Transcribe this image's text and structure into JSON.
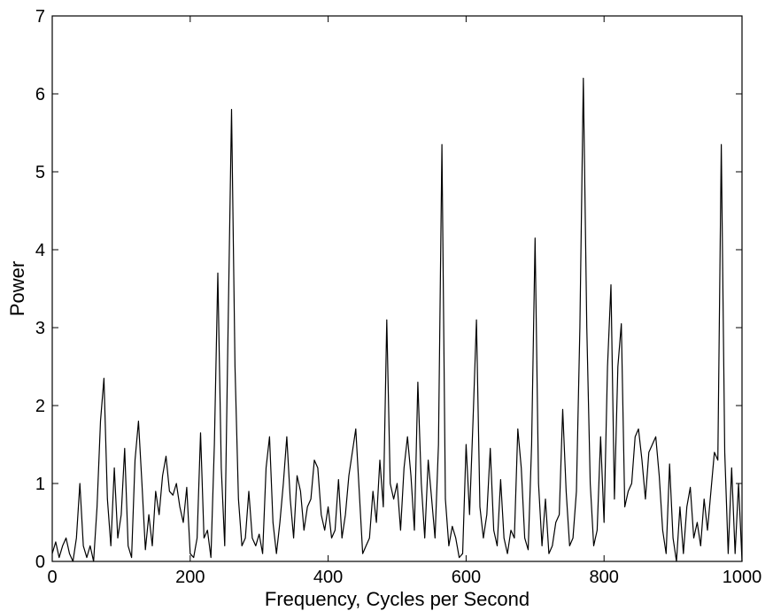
{
  "chart_data": {
    "type": "line",
    "title": "",
    "xlabel": "Frequency, Cycles per Second",
    "ylabel": "Power",
    "xlim": [
      0,
      1000
    ],
    "ylim": [
      0,
      7
    ],
    "xticks": [
      0,
      200,
      400,
      600,
      800,
      1000
    ],
    "yticks": [
      0,
      1,
      2,
      3,
      4,
      5,
      6,
      7
    ],
    "xtick_labels": [
      "0",
      "200",
      "400",
      "600",
      "800",
      "1000"
    ],
    "ytick_labels": [
      "0",
      "1",
      "2",
      "3",
      "4",
      "5",
      "6",
      "7"
    ],
    "grid": false,
    "line_color": "#000000",
    "series": [
      {
        "x": [
          0,
          5,
          10,
          15,
          20,
          25,
          30,
          35,
          40,
          45,
          50,
          55,
          60,
          65,
          70,
          75,
          80,
          85,
          90,
          95,
          100,
          105,
          110,
          115,
          120,
          125,
          130,
          135,
          140,
          145,
          150,
          155,
          160,
          165,
          170,
          175,
          180,
          185,
          190,
          195,
          200,
          205,
          210,
          215,
          220,
          225,
          230,
          235,
          240,
          245,
          250,
          255,
          260,
          265,
          270,
          275,
          280,
          285,
          290,
          295,
          300,
          305,
          310,
          315,
          320,
          325,
          330,
          335,
          340,
          345,
          350,
          355,
          360,
          365,
          370,
          375,
          380,
          385,
          390,
          395,
          400,
          405,
          410,
          415,
          420,
          425,
          430,
          435,
          440,
          445,
          450,
          455,
          460,
          465,
          470,
          475,
          480,
          485,
          490,
          495,
          500,
          505,
          510,
          515,
          520,
          525,
          530,
          535,
          540,
          545,
          550,
          555,
          560,
          565,
          570,
          575,
          580,
          585,
          590,
          595,
          600,
          605,
          610,
          615,
          620,
          625,
          630,
          635,
          640,
          645,
          650,
          655,
          660,
          665,
          670,
          675,
          680,
          685,
          690,
          695,
          700,
          705,
          710,
          715,
          720,
          725,
          730,
          735,
          740,
          745,
          750,
          755,
          760,
          765,
          770,
          775,
          780,
          785,
          790,
          795,
          800,
          805,
          810,
          815,
          820,
          825,
          830,
          835,
          840,
          845,
          850,
          855,
          860,
          865,
          870,
          875,
          880,
          885,
          890,
          895,
          900,
          905,
          910,
          915,
          920,
          925,
          930,
          935,
          940,
          945,
          950,
          955,
          960,
          965,
          970,
          975,
          980,
          985,
          990,
          995,
          1000
        ],
        "y": [
          0.1,
          0.25,
          0.05,
          0.2,
          0.3,
          0.1,
          0.0,
          0.3,
          1.0,
          0.2,
          0.05,
          0.2,
          0.0,
          0.7,
          1.8,
          2.35,
          0.8,
          0.2,
          1.2,
          0.3,
          0.6,
          1.45,
          0.2,
          0.05,
          1.3,
          1.8,
          1.0,
          0.15,
          0.6,
          0.2,
          0.9,
          0.6,
          1.1,
          1.35,
          0.9,
          0.85,
          1.0,
          0.7,
          0.5,
          0.95,
          0.1,
          0.05,
          0.3,
          1.65,
          0.3,
          0.4,
          0.05,
          1.5,
          3.7,
          1.2,
          0.2,
          3.0,
          5.8,
          2.5,
          0.8,
          0.2,
          0.3,
          0.9,
          0.3,
          0.2,
          0.35,
          0.1,
          1.2,
          1.6,
          0.5,
          0.1,
          0.5,
          1.0,
          1.6,
          0.8,
          0.3,
          1.1,
          0.9,
          0.4,
          0.7,
          0.8,
          1.3,
          1.2,
          0.6,
          0.4,
          0.7,
          0.3,
          0.4,
          1.05,
          0.3,
          0.6,
          1.1,
          1.4,
          1.7,
          0.9,
          0.1,
          0.2,
          0.3,
          0.9,
          0.5,
          1.3,
          0.7,
          3.1,
          1.0,
          0.8,
          1.0,
          0.4,
          1.2,
          1.6,
          1.1,
          0.4,
          2.3,
          1.0,
          0.3,
          1.3,
          0.8,
          0.3,
          1.5,
          5.35,
          0.8,
          0.2,
          0.45,
          0.3,
          0.05,
          0.1,
          1.5,
          0.6,
          1.8,
          3.1,
          0.7,
          0.3,
          0.6,
          1.45,
          0.4,
          0.2,
          1.05,
          0.3,
          0.1,
          0.4,
          0.3,
          1.7,
          1.2,
          0.3,
          0.15,
          1.5,
          4.15,
          1.0,
          0.2,
          0.8,
          0.1,
          0.2,
          0.5,
          0.6,
          1.95,
          0.9,
          0.2,
          0.3,
          0.9,
          3.0,
          6.2,
          3.0,
          1.0,
          0.2,
          0.4,
          1.6,
          0.5,
          2.5,
          3.55,
          0.8,
          2.5,
          3.05,
          0.7,
          0.9,
          1.0,
          1.6,
          1.7,
          1.3,
          0.8,
          1.4,
          1.5,
          1.6,
          1.1,
          0.4,
          0.1,
          1.25,
          0.3,
          0.0,
          0.7,
          0.1,
          0.7,
          0.95,
          0.3,
          0.5,
          0.2,
          0.8,
          0.4,
          0.9,
          1.4,
          1.3,
          5.35,
          1.4,
          0.1,
          1.2,
          0.1,
          1.0,
          0.0
        ]
      }
    ]
  }
}
